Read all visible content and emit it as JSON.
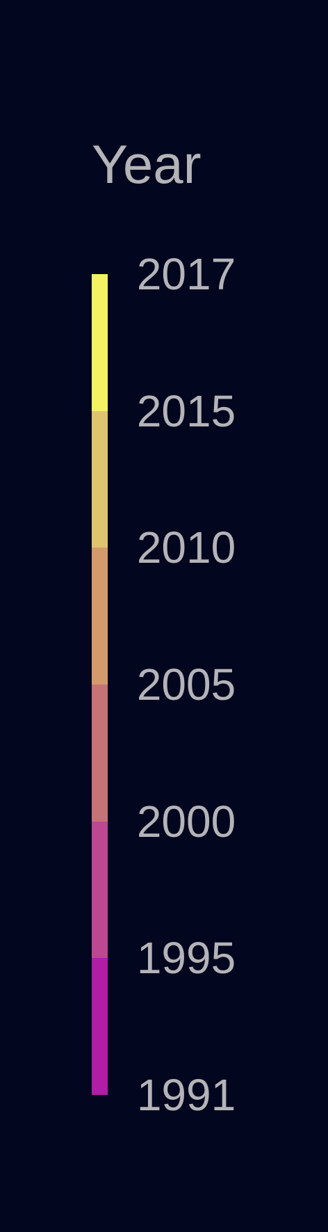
{
  "chart_data": {
    "type": "colorbar",
    "title": "Year",
    "orientation": "vertical",
    "min": 1991,
    "max": 2017,
    "bins": [
      {
        "from": 1991,
        "to": 1995,
        "color": "#b01ea5"
      },
      {
        "from": 1995,
        "to": 2000,
        "color": "#bc4891"
      },
      {
        "from": 2000,
        "to": 2005,
        "color": "#c67377"
      },
      {
        "from": 2005,
        "to": 2010,
        "color": "#d39b6c"
      },
      {
        "from": 2010,
        "to": 2015,
        "color": "#dfc46f"
      },
      {
        "from": 2015,
        "to": 2017,
        "color": "#f2f263"
      }
    ],
    "ticks": [
      "2017",
      "2015",
      "2010",
      "2005",
      "2000",
      "1995",
      "1991"
    ]
  },
  "colors": {
    "background": "#02061e",
    "text": "#b4b4b8"
  }
}
